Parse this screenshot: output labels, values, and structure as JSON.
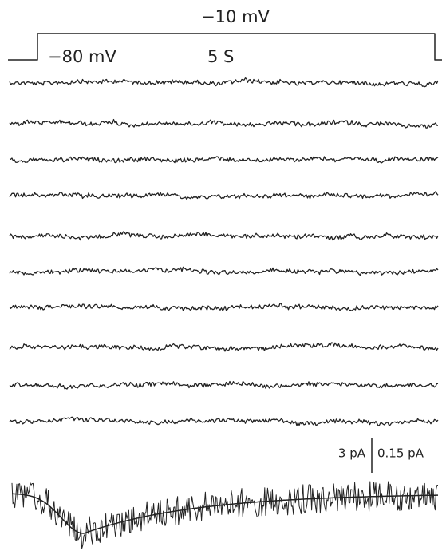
{
  "figure": {
    "step": {
      "test_label": "−10 mV",
      "holding_label": "−80 mV",
      "duration_label": "5 S"
    },
    "scale_bar": {
      "trace_label": "3 pA",
      "average_label": "0.15 pA"
    }
  }
}
